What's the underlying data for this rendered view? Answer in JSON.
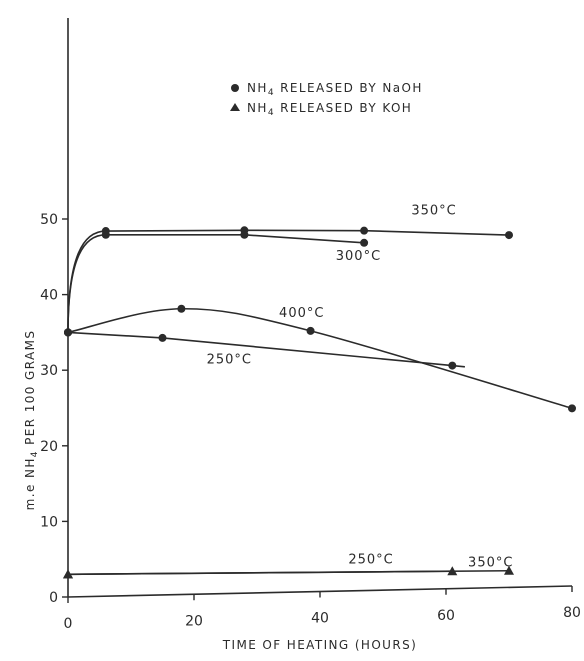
{
  "chart_data": {
    "type": "line",
    "xlabel": "TIME OF HEATING (HOURS)",
    "ylabel": "m.e NH4 PER 100 GRAMS",
    "xlim": [
      0,
      80
    ],
    "ylim": [
      0,
      55
    ],
    "xticks": [
      "0",
      "20",
      "40",
      "60",
      "80"
    ],
    "yticks": [
      "0",
      "10",
      "20",
      "30",
      "40",
      "50"
    ],
    "grid": false,
    "legend_position": "top-right",
    "legend": [
      {
        "marker": "circle",
        "text": "NH4 RELEASED BY NaOH"
      },
      {
        "marker": "triangle",
        "text": "NH4 RELEASED BY KOH"
      }
    ],
    "series": [
      {
        "name": "350°C",
        "method": "NaOH",
        "marker": "circle",
        "x": [
          0,
          6,
          28,
          47,
          70
        ],
        "y": [
          35,
          48.3,
          48,
          47.6,
          46.6
        ],
        "smooth_start": true
      },
      {
        "name": "300°C",
        "method": "NaOH",
        "marker": "circle",
        "x": [
          0,
          6,
          28,
          47
        ],
        "y": [
          35,
          47.8,
          47.4,
          46
        ],
        "smooth_start": true
      },
      {
        "name": "400°C",
        "method": "NaOH",
        "marker": "circle",
        "x": [
          0,
          18,
          38.5,
          80
        ],
        "y": [
          35,
          37.8,
          34.5,
          23.5
        ],
        "smooth": true
      },
      {
        "name": "250°C",
        "method": "NaOH",
        "marker": "circle",
        "x": [
          0,
          15,
          61
        ],
        "y": [
          35,
          34,
          29.5
        ],
        "line_extend_to": 63
      },
      {
        "name": "250°C",
        "method": "KOH",
        "marker": "triangle",
        "x": [
          0,
          61
        ],
        "y": [
          3,
          2.3
        ]
      },
      {
        "name": "350°C",
        "method": "KOH",
        "marker": "triangle",
        "x": [
          0,
          70
        ],
        "y": [
          3,
          2.2
        ]
      }
    ],
    "annotations": [
      {
        "text": "350°C",
        "x": 54.5,
        "y": 49.6
      },
      {
        "text": "300°C",
        "x": 42.5,
        "y": 43.8
      },
      {
        "text": "400°C",
        "x": 33.5,
        "y": 36.4
      },
      {
        "text": "250°C",
        "x": 22,
        "y": 30.5
      },
      {
        "text": "250°C",
        "x": 44.5,
        "y": 3.6
      },
      {
        "text": "350°C",
        "x": 63.5,
        "y": 2.9
      }
    ]
  }
}
